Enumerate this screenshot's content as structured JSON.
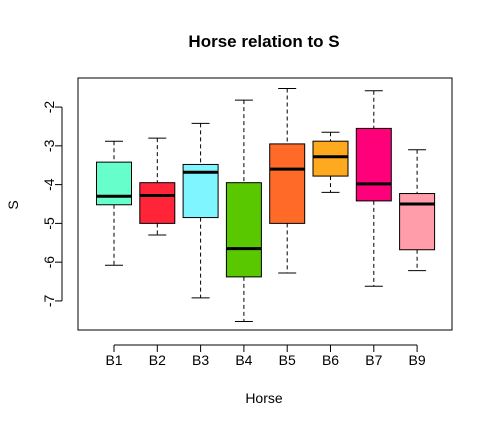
{
  "chart_data": {
    "type": "boxplot",
    "title": "Horse relation to S",
    "xlabel": "Horse",
    "ylabel": "S",
    "categories": [
      "B1",
      "B2",
      "B3",
      "B4",
      "B5",
      "B6",
      "B7",
      "B9"
    ],
    "ylim": [
      -7.75,
      -1.25
    ],
    "yticks": [
      -7,
      -6,
      -5,
      -4,
      -3,
      -2
    ],
    "ytick_labels": [
      "-7",
      "-6",
      "-5",
      "-4",
      "-3",
      "-2"
    ],
    "grid": false,
    "series": [
      {
        "category": "B1",
        "min": -6.08,
        "q1": -4.52,
        "median": -4.3,
        "q3": -3.42,
        "max": -2.88,
        "color": "#66FFCC"
      },
      {
        "category": "B2",
        "min": -5.3,
        "q1": -5.0,
        "median": -4.28,
        "q3": -3.95,
        "max": -2.8,
        "color": "#FF2438"
      },
      {
        "category": "B3",
        "min": -6.92,
        "q1": -4.85,
        "median": -3.68,
        "q3": -3.48,
        "max": -2.42,
        "color": "#7FF5FF"
      },
      {
        "category": "B4",
        "min": -7.53,
        "q1": -6.38,
        "median": -5.65,
        "q3": -3.95,
        "max": -1.82,
        "color": "#5AC800"
      },
      {
        "category": "B5",
        "min": -6.28,
        "q1": -5.0,
        "median": -3.6,
        "q3": -2.95,
        "max": -1.52,
        "color": "#FF6A28"
      },
      {
        "category": "B6",
        "min": -4.2,
        "q1": -3.78,
        "median": -3.28,
        "q3": -2.88,
        "max": -2.65,
        "color": "#FFA91E"
      },
      {
        "category": "B7",
        "min": -6.62,
        "q1": -4.42,
        "median": -3.98,
        "q3": -2.55,
        "max": -1.58,
        "color": "#FF007A"
      },
      {
        "category": "B9",
        "min": -6.22,
        "q1": -5.68,
        "median": -4.5,
        "q3": -4.23,
        "max": -3.1,
        "color": "#FF9DAA"
      }
    ]
  }
}
